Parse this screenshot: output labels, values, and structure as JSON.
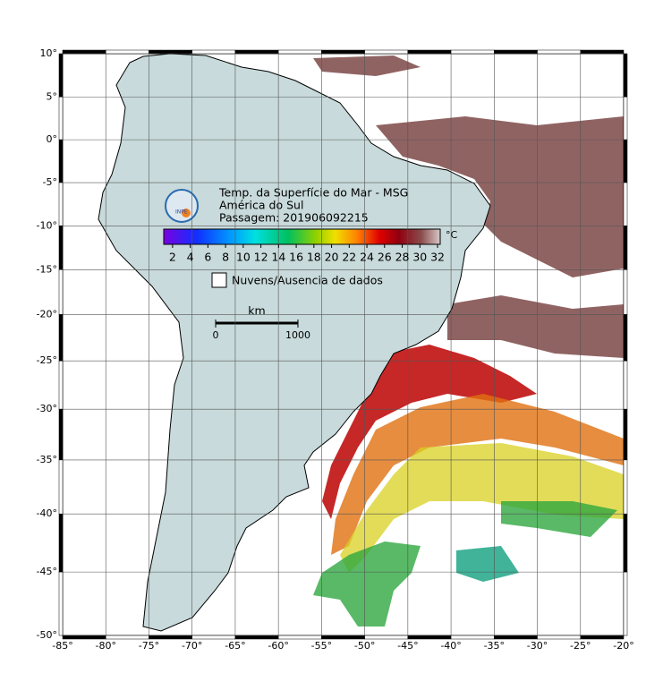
{
  "map": {
    "title": "Temp. da Superfície do Mar - MSG",
    "subtitle": "América do Sul",
    "pass": "Passagem: 201906092215",
    "logo": "INPE",
    "xlim": [
      -85,
      -20
    ],
    "ylim": [
      -50,
      10
    ],
    "xticks": [
      {
        "value": -85,
        "label": "-85°"
      },
      {
        "value": -80,
        "label": "-80°"
      },
      {
        "value": -75,
        "label": "-75°"
      },
      {
        "value": -70,
        "label": "-70°"
      },
      {
        "value": -65,
        "label": "-65°"
      },
      {
        "value": -60,
        "label": "-60°"
      },
      {
        "value": -55,
        "label": "-55°"
      },
      {
        "value": -50,
        "label": "-50°"
      },
      {
        "value": -45,
        "label": "-45°"
      },
      {
        "value": -40,
        "label": "-40°"
      },
      {
        "value": -35,
        "label": "-35°"
      },
      {
        "value": -30,
        "label": "-30°"
      },
      {
        "value": -25,
        "label": "-25°"
      },
      {
        "value": -20,
        "label": "-20°"
      }
    ],
    "yticks": [
      {
        "value": 10,
        "label": "10°"
      },
      {
        "value": 5,
        "label": "5°"
      },
      {
        "value": 0,
        "label": "0°"
      },
      {
        "value": -5,
        "label": "-5°"
      },
      {
        "value": -10,
        "label": "-10°"
      },
      {
        "value": -15,
        "label": "-15°"
      },
      {
        "value": -20,
        "label": "-20°"
      },
      {
        "value": -25,
        "label": "-25°"
      },
      {
        "value": -30,
        "label": "-30°"
      },
      {
        "value": -35,
        "label": "-35°"
      },
      {
        "value": -40,
        "label": "-40°"
      },
      {
        "value": -45,
        "label": "-45°"
      },
      {
        "value": -50,
        "label": "-50°"
      }
    ]
  },
  "colorbar": {
    "unit": "°C",
    "clim": [
      1,
      32.3
    ],
    "ticks": [
      2,
      4,
      6,
      8,
      10,
      12,
      14,
      16,
      18,
      20,
      22,
      24,
      26,
      28,
      30,
      32
    ]
  },
  "legend": {
    "label": "Nuvens/Ausencia de dados"
  },
  "scale_bar": {
    "unit": "km",
    "ticks": [
      0,
      1000
    ]
  }
}
